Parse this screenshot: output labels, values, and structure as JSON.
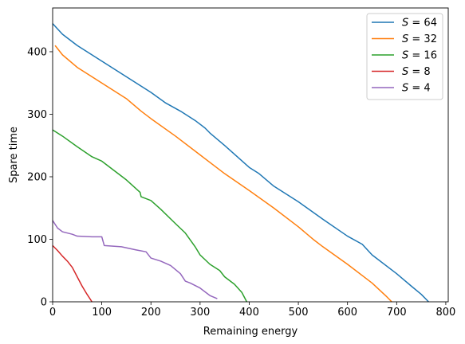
{
  "chart_data": {
    "type": "line",
    "title": "",
    "xlabel": "Remaining energy",
    "ylabel": "Spare time",
    "xlim": [
      0,
      805
    ],
    "ylim": [
      0,
      470
    ],
    "xticks": [
      0,
      100,
      200,
      300,
      400,
      500,
      600,
      700,
      800
    ],
    "yticks": [
      0,
      100,
      200,
      300,
      400
    ],
    "grid": false,
    "legend_position": "top-right",
    "series": [
      {
        "name": "S = 64",
        "legend_var": "S",
        "legend_eq": " = 64",
        "color": "#1f77b4",
        "x": [
          0,
          20,
          50,
          100,
          150,
          200,
          230,
          260,
          290,
          310,
          320,
          350,
          400,
          420,
          450,
          500,
          550,
          600,
          630,
          650,
          700,
          730,
          750,
          765
        ],
        "y": [
          445,
          428,
          410,
          385,
          360,
          335,
          318,
          305,
          290,
          278,
          270,
          250,
          215,
          205,
          185,
          160,
          132,
          105,
          92,
          75,
          45,
          25,
          12,
          0
        ]
      },
      {
        "name": "S = 32",
        "legend_var": "S",
        "legend_eq": " = 32",
        "color": "#ff7f0e",
        "x": [
          5,
          20,
          50,
          80,
          100,
          150,
          180,
          200,
          250,
          300,
          350,
          400,
          450,
          500,
          530,
          550,
          600,
          650,
          680,
          690
        ],
        "y": [
          410,
          395,
          375,
          360,
          350,
          325,
          305,
          293,
          265,
          235,
          205,
          178,
          150,
          120,
          100,
          88,
          60,
          30,
          8,
          0
        ]
      },
      {
        "name": "S = 16",
        "legend_var": "S",
        "legend_eq": " = 16",
        "color": "#2ca02c",
        "x": [
          0,
          20,
          50,
          80,
          100,
          150,
          178,
          180,
          200,
          220,
          250,
          270,
          290,
          300,
          320,
          340,
          350,
          370,
          385,
          395
        ],
        "y": [
          275,
          265,
          248,
          232,
          225,
          195,
          175,
          168,
          162,
          148,
          125,
          110,
          88,
          75,
          60,
          50,
          40,
          28,
          15,
          0
        ]
      },
      {
        "name": "S = 8",
        "legend_var": "S",
        "legend_eq": " = 8",
        "color": "#d62728",
        "x": [
          0,
          10,
          20,
          30,
          40,
          50,
          60,
          70,
          80
        ],
        "y": [
          90,
          82,
          73,
          65,
          55,
          40,
          25,
          12,
          0
        ]
      },
      {
        "name": "S = 4",
        "legend_var": "S",
        "legend_eq": " = 4",
        "color": "#9467bd",
        "x": [
          0,
          10,
          20,
          40,
          50,
          80,
          100,
          105,
          140,
          170,
          190,
          200,
          220,
          240,
          260,
          270,
          280,
          300,
          320,
          335
        ],
        "y": [
          130,
          118,
          112,
          108,
          105,
          104,
          104,
          90,
          88,
          83,
          80,
          70,
          65,
          58,
          45,
          33,
          30,
          22,
          10,
          5
        ]
      }
    ]
  }
}
